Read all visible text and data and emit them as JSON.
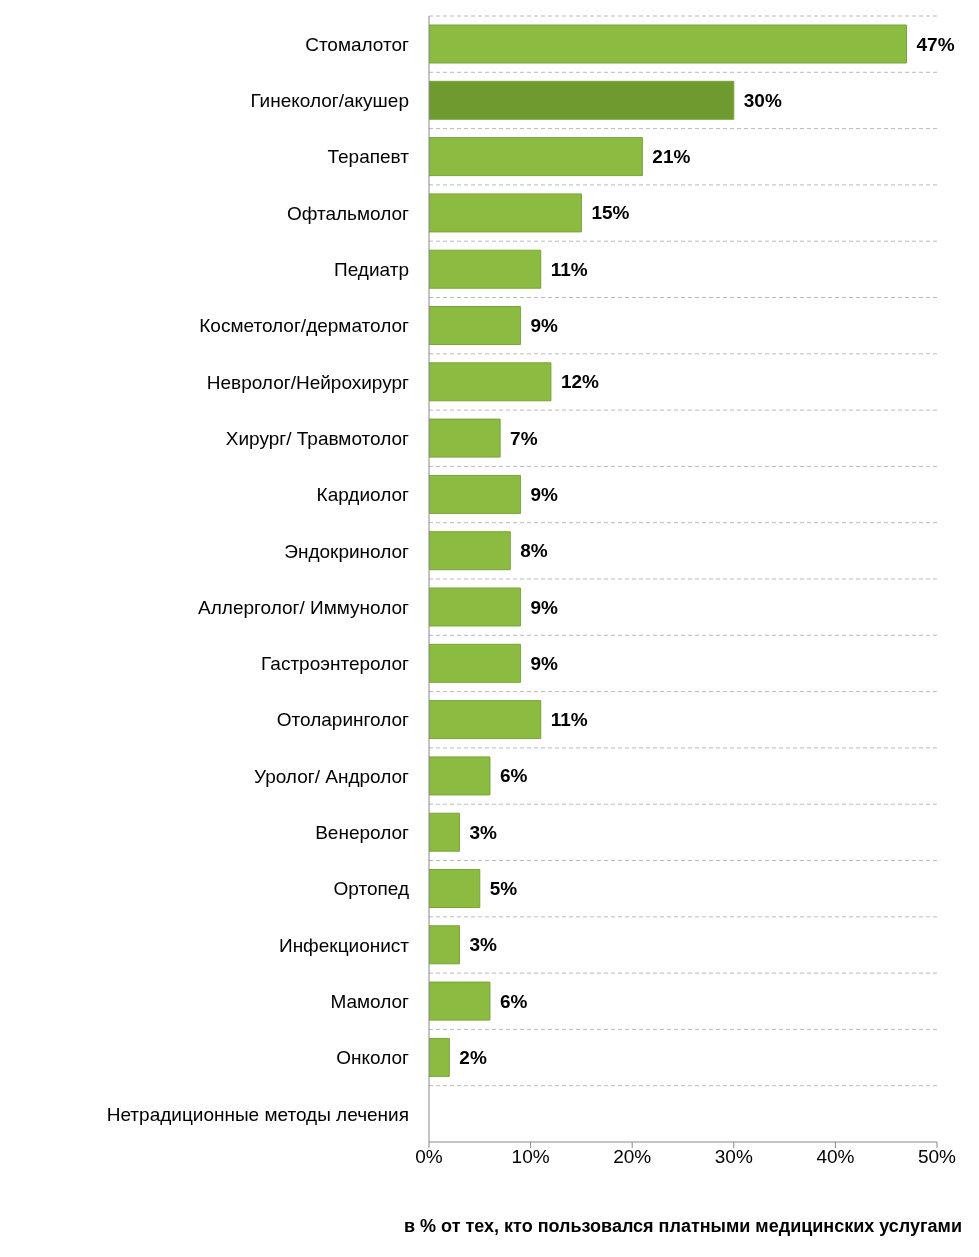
{
  "chart_data": {
    "type": "bar",
    "orientation": "horizontal",
    "xlabel": "в % от тех, кто пользовался платными медицинских услугами",
    "categories": [
      "Стомалотог",
      "Гинеколог/акушер",
      "Терапевт",
      "Офтальмолог",
      "Педиатр",
      "Косметолог/дерматолог",
      "Невролог/Нейрохирург",
      "Хирург/ Травмотолог",
      "Кардиолог",
      "Эндокринолог",
      "Аллерголог/ Иммунолог",
      "Гастроэнтеролог",
      "Отоларинголог",
      "Уролог/ Андролог",
      "Венеролог",
      "Ортопед",
      "Инфекционист",
      "Мамолог",
      "Онколог",
      "Нетрадиционные методы лечения"
    ],
    "values": [
      47,
      30,
      21,
      15,
      11,
      9,
      12,
      7,
      9,
      8,
      9,
      9,
      11,
      6,
      3,
      5,
      3,
      6,
      2,
      null
    ],
    "value_labels": [
      "47%",
      "30%",
      "21%",
      "15%",
      "11%",
      "9%",
      "12%",
      "7%",
      "9%",
      "8%",
      "9%",
      "9%",
      "11%",
      "6%",
      "3%",
      "5%",
      "3%",
      "6%",
      "2%",
      null
    ],
    "colors": [
      "#8cbb42",
      "#6f9a30",
      "#8cbb42",
      "#8cbb42",
      "#8cbb42",
      "#8cbb42",
      "#8cbb42",
      "#8cbb42",
      "#8cbb42",
      "#8cbb42",
      "#8cbb42",
      "#8cbb42",
      "#8cbb42",
      "#8cbb42",
      "#8cbb42",
      "#8cbb42",
      "#8cbb42",
      "#8cbb42",
      "#8cbb42",
      "#8cbb42"
    ],
    "xlim": [
      0,
      50
    ],
    "xticks": [
      {
        "value": 0,
        "label": "0%"
      },
      {
        "value": 10,
        "label": "10%"
      },
      {
        "value": 20,
        "label": "20%"
      },
      {
        "value": 30,
        "label": "30%"
      },
      {
        "value": 40,
        "label": "40%"
      },
      {
        "value": 50,
        "label": "50%"
      }
    ],
    "grid": "y",
    "legend": false
  }
}
